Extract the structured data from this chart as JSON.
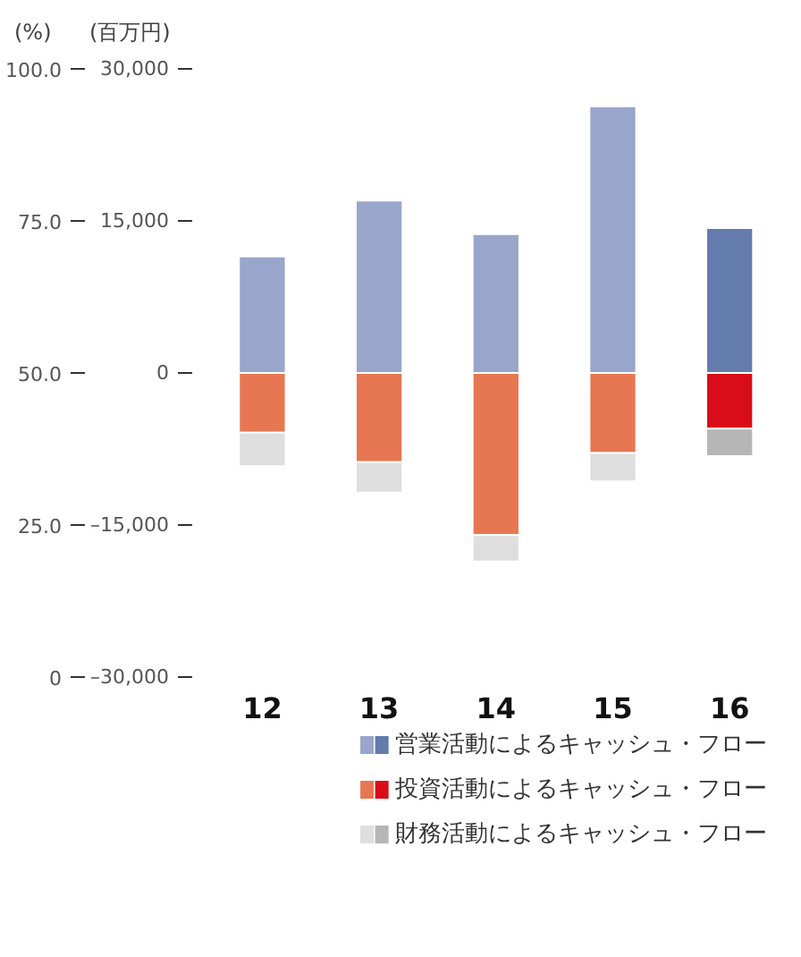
{
  "chart_data": {
    "type": "bar",
    "stacked": true,
    "categories": [
      "12",
      "13",
      "14",
      "15",
      "16"
    ],
    "series": [
      {
        "name": "営業活動によるキャッシュ・フロー",
        "color": "#99a5ca",
        "colors": [
          "#99a5ca",
          "#99a5ca",
          "#99a5ca",
          "#99a5ca",
          "#637bad"
        ],
        "values": [
          11500,
          17000,
          13700,
          26300,
          14300
        ]
      },
      {
        "name": "投資活動によるキャッシュ・フロー",
        "color": "#e77752",
        "colors": [
          "#e77752",
          "#e77752",
          "#e77752",
          "#e77752",
          "#d90c1a"
        ],
        "values": [
          -5900,
          -8800,
          -16000,
          -7900,
          -5500
        ]
      },
      {
        "name": "財務活動によるキャッシュ・フロー",
        "color": "#dddedd",
        "colors": [
          "#dddedd",
          "#dddedd",
          "#dddedd",
          "#dddedd",
          "#b5b6b5"
        ],
        "values": [
          -3300,
          -3000,
          -2600,
          -2800,
          -2700
        ]
      }
    ],
    "ylabel": "(百万円)",
    "y2label": "(%)",
    "ylim": [
      -30000,
      30000
    ],
    "yticks": [
      {
        "value": -30000,
        "label": "–30,000"
      },
      {
        "value": -15000,
        "label": "–15,000"
      },
      {
        "value": 0,
        "label": "0"
      },
      {
        "value": 15000,
        "label": "15,000"
      },
      {
        "value": 30000,
        "label": "30,000"
      }
    ],
    "y2lim": [
      0,
      100
    ],
    "y2ticks": [
      0,
      {
        "value": 25,
        "label": "25.0"
      },
      {
        "value": 50,
        "label": "50.0"
      },
      {
        "value": 75,
        "label": "75.0"
      },
      {
        "value": 100,
        "label": "100.0"
      }
    ],
    "grid": false,
    "legend": "bottom"
  }
}
